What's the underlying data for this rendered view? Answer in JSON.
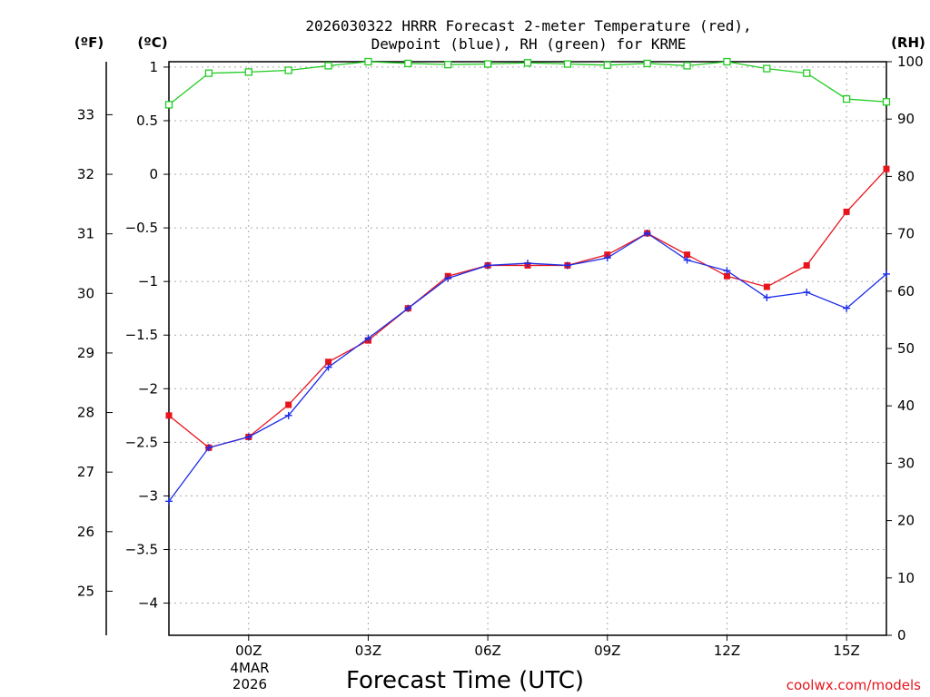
{
  "chart_data": {
    "type": "line",
    "title_line1": "2026030322 HRRR Forecast 2-meter Temperature (red),",
    "title_line2": "Dewpoint (blue), RH (green) for KRME",
    "xlabel": "Forecast Time (UTC)",
    "credit": "coolwx.com/models",
    "unit_f": "(ºF)",
    "unit_c": "(ºC)",
    "unit_rh": "(RH)",
    "x_hours": [
      22,
      23,
      24,
      25,
      26,
      27,
      28,
      29,
      30,
      31,
      32,
      33,
      34,
      35,
      36,
      37,
      38,
      39,
      40
    ],
    "xlim": [
      22,
      40
    ],
    "x_ticks": [
      {
        "h": 24,
        "label": "00Z"
      },
      {
        "h": 27,
        "label": "03Z"
      },
      {
        "h": 30,
        "label": "06Z"
      },
      {
        "h": 33,
        "label": "09Z"
      },
      {
        "h": 36,
        "label": "12Z"
      },
      {
        "h": 39,
        "label": "15Z"
      }
    ],
    "date_label_line1": "4MAR",
    "date_label_line2": "2026",
    "celsius_axis": {
      "ylim": [
        -4.3,
        1.05
      ],
      "ticks": [
        1,
        0.5,
        0,
        -0.5,
        -1,
        -1.5,
        -2,
        -2.5,
        -3,
        -3.5,
        -4
      ],
      "tick_labels": [
        "1",
        "0.5",
        "0",
        "−0.5",
        "−1",
        "−1.5",
        "−2",
        "−2.5",
        "−3",
        "−3.5",
        "−4"
      ]
    },
    "fahrenheit_axis": {
      "ticks": [
        33,
        32,
        31,
        30,
        29,
        28,
        27,
        26,
        25
      ],
      "tick_labels": [
        "33",
        "32",
        "31",
        "30",
        "29",
        "28",
        "27",
        "26",
        "25"
      ]
    },
    "rh_axis": {
      "ylim": [
        0,
        100
      ],
      "ticks": [
        100,
        90,
        80,
        70,
        60,
        50,
        40,
        30,
        20,
        10,
        0
      ],
      "tick_labels": [
        "100",
        "90",
        "80",
        "70",
        "60",
        "50",
        "40",
        "30",
        "20",
        "10",
        "0"
      ]
    },
    "series": [
      {
        "name": "Temperature",
        "unit": "C",
        "color": "#e8141c",
        "marker": "square",
        "values": [
          -2.25,
          -2.55,
          -2.45,
          -2.15,
          -1.75,
          -1.55,
          -1.25,
          -0.95,
          -0.85,
          -0.85,
          -0.85,
          -0.75,
          -0.55,
          -0.75,
          -0.95,
          -1.05,
          -0.85,
          -0.35,
          0.05
        ]
      },
      {
        "name": "Dewpoint",
        "unit": "C",
        "color": "#1c2ce8",
        "marker": "plus",
        "values": [
          -3.05,
          -2.55,
          -2.45,
          -2.25,
          -1.8,
          -1.53,
          -1.25,
          -0.97,
          -0.85,
          -0.83,
          -0.85,
          -0.78,
          -0.55,
          -0.8,
          -0.9,
          -1.15,
          -1.1,
          -1.25,
          -0.93
        ]
      },
      {
        "name": "RH",
        "unit": "%",
        "color": "#22cc22",
        "marker": "open-square",
        "values": [
          92.5,
          98,
          98.2,
          98.5,
          99.3,
          100,
          99.7,
          99.5,
          99.6,
          99.8,
          99.6,
          99.4,
          99.7,
          99.3,
          100,
          98.8,
          98,
          93.5,
          93
        ]
      }
    ]
  }
}
